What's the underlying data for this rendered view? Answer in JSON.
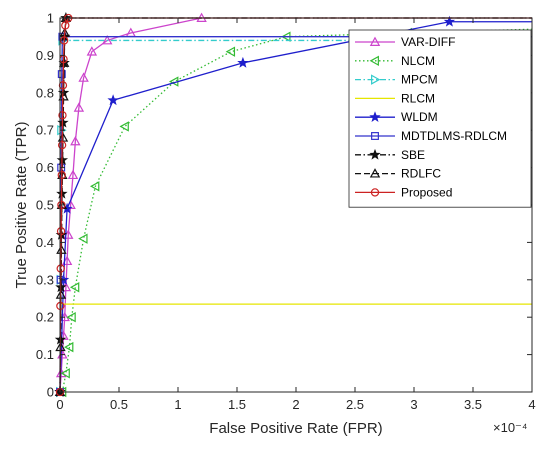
{
  "chart_data": {
    "type": "line",
    "title": "",
    "xlabel": "False Positive Rate (FPR)",
    "ylabel": "True Positive Rate (TPR)",
    "x_exponent_label": "×10⁻⁴",
    "x_scale_factor": 0.0001,
    "xlim": [
      0,
      4
    ],
    "ylim": [
      0,
      1
    ],
    "xticks": [
      "0",
      "0.5",
      "1",
      "1.5",
      "2",
      "2.5",
      "3",
      "3.5",
      "4"
    ],
    "yticks": [
      "0",
      "0.1",
      "0.2",
      "0.3",
      "0.4",
      "0.5",
      "0.6",
      "0.7",
      "0.8",
      "0.9",
      "1"
    ],
    "grid": false,
    "legend_position": "top-right",
    "series": [
      {
        "name": "VAR-DIFF",
        "color": "#cc44cc",
        "line_style": "solid",
        "marker": "triangle-up",
        "x": [
          0.0,
          0.01,
          0.02,
          0.03,
          0.04,
          0.05,
          0.06,
          0.07,
          0.09,
          0.11,
          0.13,
          0.16,
          0.2,
          0.27,
          0.4,
          0.6,
          1.2
        ],
        "y": [
          0.0,
          0.05,
          0.1,
          0.15,
          0.2,
          0.28,
          0.35,
          0.42,
          0.5,
          0.58,
          0.67,
          0.76,
          0.84,
          0.91,
          0.94,
          0.96,
          1.0
        ]
      },
      {
        "name": "NLCM",
        "color": "#33bb33",
        "line_style": "dotted",
        "marker": "triangle-left",
        "x": [
          0.02,
          0.05,
          0.08,
          0.1,
          0.13,
          0.2,
          0.3,
          0.55,
          0.97,
          1.45,
          1.92,
          2.95,
          4.0
        ],
        "y": [
          0.0,
          0.05,
          0.12,
          0.2,
          0.28,
          0.41,
          0.55,
          0.71,
          0.83,
          0.91,
          0.95,
          0.96,
          0.97
        ]
      },
      {
        "name": "MPCM",
        "color": "#33cccc",
        "line_style": "dashdot",
        "marker": "triangle-right",
        "x": [
          0.0,
          0.005,
          0.01,
          0.02,
          4.0
        ],
        "y": [
          0.0,
          0.3,
          0.7,
          0.94,
          0.94
        ]
      },
      {
        "name": "RLCM",
        "color": "#e6e600",
        "line_style": "solid",
        "marker": "none",
        "x": [
          0.0,
          4.0
        ],
        "y": [
          0.235,
          0.235
        ]
      },
      {
        "name": "WLDM",
        "color": "#1f1fcc",
        "line_style": "solid",
        "marker": "star",
        "x": [
          0.0,
          0.03,
          0.06,
          0.45,
          1.55,
          3.3,
          4.0
        ],
        "y": [
          0.0,
          0.3,
          0.49,
          0.78,
          0.88,
          0.99,
          0.99
        ]
      },
      {
        "name": "MDTDLMS-RDLCM",
        "color": "#3333cc",
        "line_style": "solid",
        "marker": "square",
        "x": [
          0.0,
          0.005,
          0.01,
          0.015,
          0.02,
          4.0
        ],
        "y": [
          0.0,
          0.3,
          0.6,
          0.85,
          0.95,
          0.95
        ]
      },
      {
        "name": "SBE",
        "color": "#111111",
        "line_style": "dashdot",
        "marker": "star",
        "x": [
          0.0,
          0.004,
          0.008,
          0.012,
          0.016,
          0.02,
          0.025,
          0.03,
          0.035,
          0.04,
          0.05,
          4.0
        ],
        "y": [
          0.0,
          0.14,
          0.28,
          0.42,
          0.53,
          0.62,
          0.72,
          0.8,
          0.88,
          0.95,
          1.0,
          1.0
        ]
      },
      {
        "name": "RDLFC",
        "color": "#111111",
        "line_style": "dashed",
        "marker": "triangle-up",
        "x": [
          0.0,
          0.004,
          0.008,
          0.012,
          0.016,
          0.02,
          0.025,
          0.03,
          0.035,
          0.04,
          0.05,
          4.0
        ],
        "y": [
          0.0,
          0.12,
          0.26,
          0.38,
          0.5,
          0.58,
          0.68,
          0.79,
          0.88,
          0.96,
          1.0,
          1.0
        ]
      },
      {
        "name": "Proposed",
        "color": "#cc2222",
        "line_style": "solid",
        "marker": "circle",
        "x": [
          0.0,
          0.003,
          0.006,
          0.009,
          0.012,
          0.015,
          0.018,
          0.021,
          0.025,
          0.03,
          0.035,
          0.045,
          0.07,
          4.0
        ],
        "y": [
          0.0,
          0.23,
          0.33,
          0.43,
          0.5,
          0.58,
          0.66,
          0.74,
          0.82,
          0.89,
          0.94,
          0.98,
          1.0,
          1.0
        ]
      }
    ]
  }
}
